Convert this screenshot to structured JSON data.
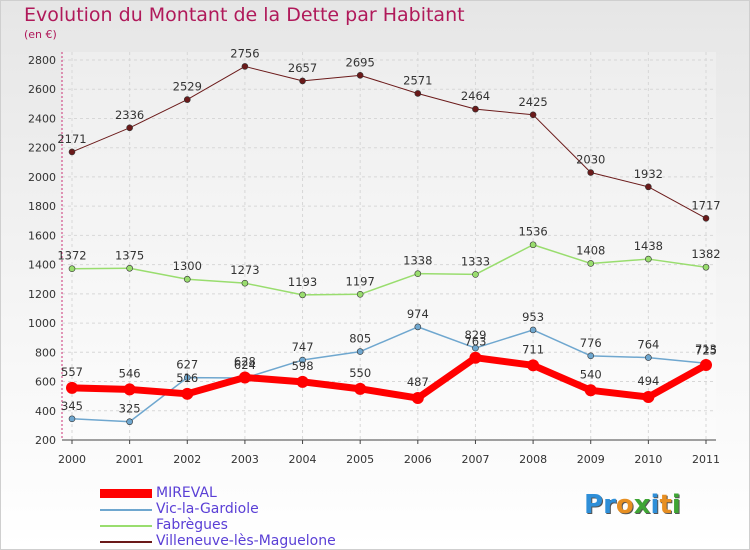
{
  "title": "Evolution du Montant de la Dette par Habitant",
  "subtitle": "(en €)",
  "brand": {
    "letters": [
      "P",
      "r",
      "o",
      "x",
      "i",
      "t",
      "i"
    ],
    "colors": [
      "#2f8fd8",
      "#2f8fd8",
      "#e78f22",
      "#3fa535",
      "#2f8fd8",
      "#e78f22",
      "#3fa535"
    ]
  },
  "chart_data": {
    "type": "line",
    "title": "Evolution du Montant de la Dette par Habitant",
    "subtitle": "(en €)",
    "xlabel": "",
    "ylabel": "",
    "categories": [
      "2000",
      "2001",
      "2002",
      "2003",
      "2004",
      "2005",
      "2006",
      "2007",
      "2008",
      "2009",
      "2010",
      "2011"
    ],
    "ylim": [
      200,
      2800
    ],
    "yticks": [
      200,
      400,
      600,
      800,
      1000,
      1200,
      1400,
      1600,
      1800,
      2000,
      2200,
      2400,
      2600,
      2800
    ],
    "grid": true,
    "legend_position": "bottom-left",
    "series": [
      {
        "name": "Villeneuve-lès-Maguelone",
        "color": "#6b1a1a",
        "width": 1,
        "labels": [
          "2171",
          "2336",
          "2529",
          "2756",
          "2657",
          "2695",
          "2571",
          "2464",
          "2425",
          "2030",
          "1932",
          "1717"
        ],
        "values": [
          2171,
          2336,
          2529,
          2756,
          2657,
          2695,
          2571,
          2464,
          2425,
          2030,
          1932,
          1717
        ]
      },
      {
        "name": "Fabrègues",
        "color": "#99dd6e",
        "width": 1.5,
        "labels": [
          "1372",
          "1375",
          "1300",
          "1273",
          "1193",
          "1197",
          "1338",
          "1333",
          "1536",
          "1408",
          "1438",
          "1382"
        ],
        "values": [
          1372,
          1375,
          1300,
          1273,
          1193,
          1197,
          1338,
          1333,
          1536,
          1408,
          1438,
          1382
        ]
      },
      {
        "name": "Vic-la-Gardiole",
        "color": "#6fa7cf",
        "width": 1.5,
        "labels": [
          "345",
          "325",
          "627",
          "624",
          "747",
          "805",
          "974",
          "829",
          "953",
          "776",
          "764",
          "725"
        ],
        "values": [
          345,
          325,
          627,
          624,
          747,
          805,
          974,
          829,
          953,
          776,
          764,
          725
        ]
      },
      {
        "name": "MIREVAL",
        "color": "#ff0000",
        "width": 7,
        "labels": [
          "557",
          "546",
          "516",
          "628",
          "598",
          "550",
          "487",
          "763",
          "711",
          "540",
          "494",
          "713"
        ],
        "values": [
          557,
          546,
          516,
          628,
          598,
          550,
          487,
          763,
          711,
          540,
          494,
          713
        ]
      }
    ],
    "legend_order": [
      "MIREVAL",
      "Vic-la-Gardiole",
      "Fabrègues",
      "Villeneuve-lès-Maguelone"
    ]
  }
}
